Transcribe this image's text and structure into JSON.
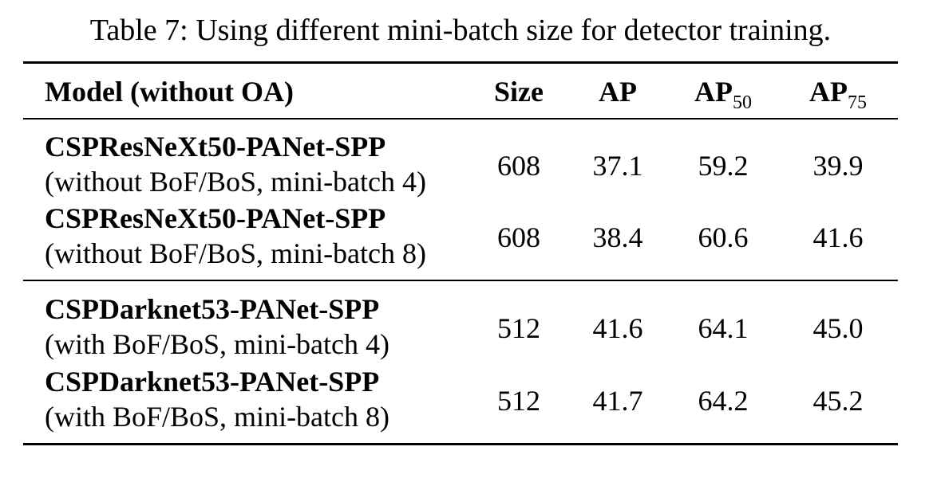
{
  "caption": "Table 7: Using different mini-batch size for detector training.",
  "header": {
    "model": "Model (without OA)",
    "size": "Size",
    "ap": "AP",
    "ap50_base": "AP",
    "ap50_sub": "50",
    "ap75_base": "AP",
    "ap75_sub": "75"
  },
  "rows": [
    {
      "name": "CSPResNeXt50-PANet-SPP",
      "desc": "(without BoF/BoS, mini-batch 4)",
      "size": "608",
      "ap": "37.1",
      "ap50": "59.2",
      "ap75": "39.9"
    },
    {
      "name": "CSPResNeXt50-PANet-SPP",
      "desc": "(without BoF/BoS, mini-batch 8)",
      "size": "608",
      "ap": "38.4",
      "ap50": "60.6",
      "ap75": "41.6"
    },
    {
      "name": "CSPDarknet53-PANet-SPP",
      "desc": "(with BoF/BoS, mini-batch 4)",
      "size": "512",
      "ap": "41.6",
      "ap50": "64.1",
      "ap75": "45.0"
    },
    {
      "name": "CSPDarknet53-PANet-SPP",
      "desc": "(with BoF/BoS, mini-batch 8)",
      "size": "512",
      "ap": "41.7",
      "ap50": "64.2",
      "ap75": "45.2"
    }
  ]
}
